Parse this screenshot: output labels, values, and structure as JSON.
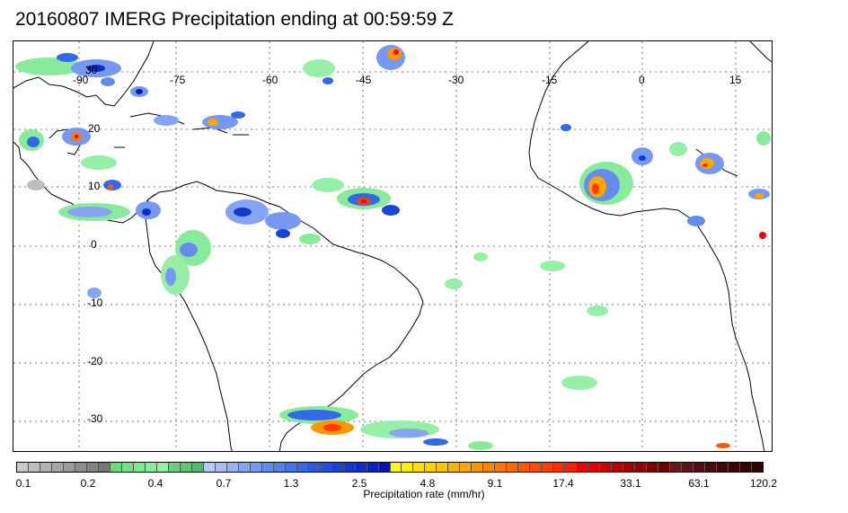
{
  "title": "20160807 IMERG Precipitation ending at 00:59:59 Z",
  "map": {
    "lon_labels": [
      "-90",
      "-75",
      "-60",
      "-45",
      "-30",
      "-15",
      "0",
      "15"
    ],
    "lat_labels": [
      "30",
      "20",
      "10",
      "0",
      "-10",
      "-20",
      "-30"
    ]
  },
  "colorbar": {
    "label": "Precipitation rate (mm/hr)",
    "tick_labels": [
      "0.1",
      "0.2",
      "0.4",
      "0.7",
      "1.3",
      "2.5",
      "4.8",
      "9.1",
      "17.4",
      "33.1",
      "63.1",
      "120.2"
    ],
    "colors": [
      "#c8c8c8",
      "#bdbdbd",
      "#b2b2b2",
      "#a6a6a6",
      "#9a9a9a",
      "#8e8e8e",
      "#828282",
      "#777777",
      "#66dd77",
      "#72e283",
      "#7ee68f",
      "#8aea9b",
      "#96eea7",
      "#6fcf80",
      "#5fc370",
      "#52b765",
      "#b9c8ff",
      "#a8bcfb",
      "#97b0f8",
      "#86a4f5",
      "#7598f2",
      "#648cef",
      "#5380ec",
      "#4274e9",
      "#3368e6",
      "#2a5ce0",
      "#2250da",
      "#1b44d4",
      "#1438cc",
      "#0e2cc3",
      "#0a22b9",
      "#0818ad",
      "#ffff00",
      "#fff000",
      "#ffe100",
      "#ffd200",
      "#ffc300",
      "#ffb400",
      "#ffa500",
      "#ff9600",
      "#ff8700",
      "#ff7800",
      "#ff6900",
      "#ff5a00",
      "#ff4b00",
      "#ff3c00",
      "#ff2d00",
      "#ff1e00",
      "#f50000",
      "#e00000",
      "#cc0000",
      "#b80000",
      "#a40000",
      "#900000",
      "#800000",
      "#700000",
      "#651a1a",
      "#5c1414",
      "#530f0f",
      "#4a0b0b",
      "#420808",
      "#3a0505",
      "#330303",
      "#2c0101"
    ]
  }
}
